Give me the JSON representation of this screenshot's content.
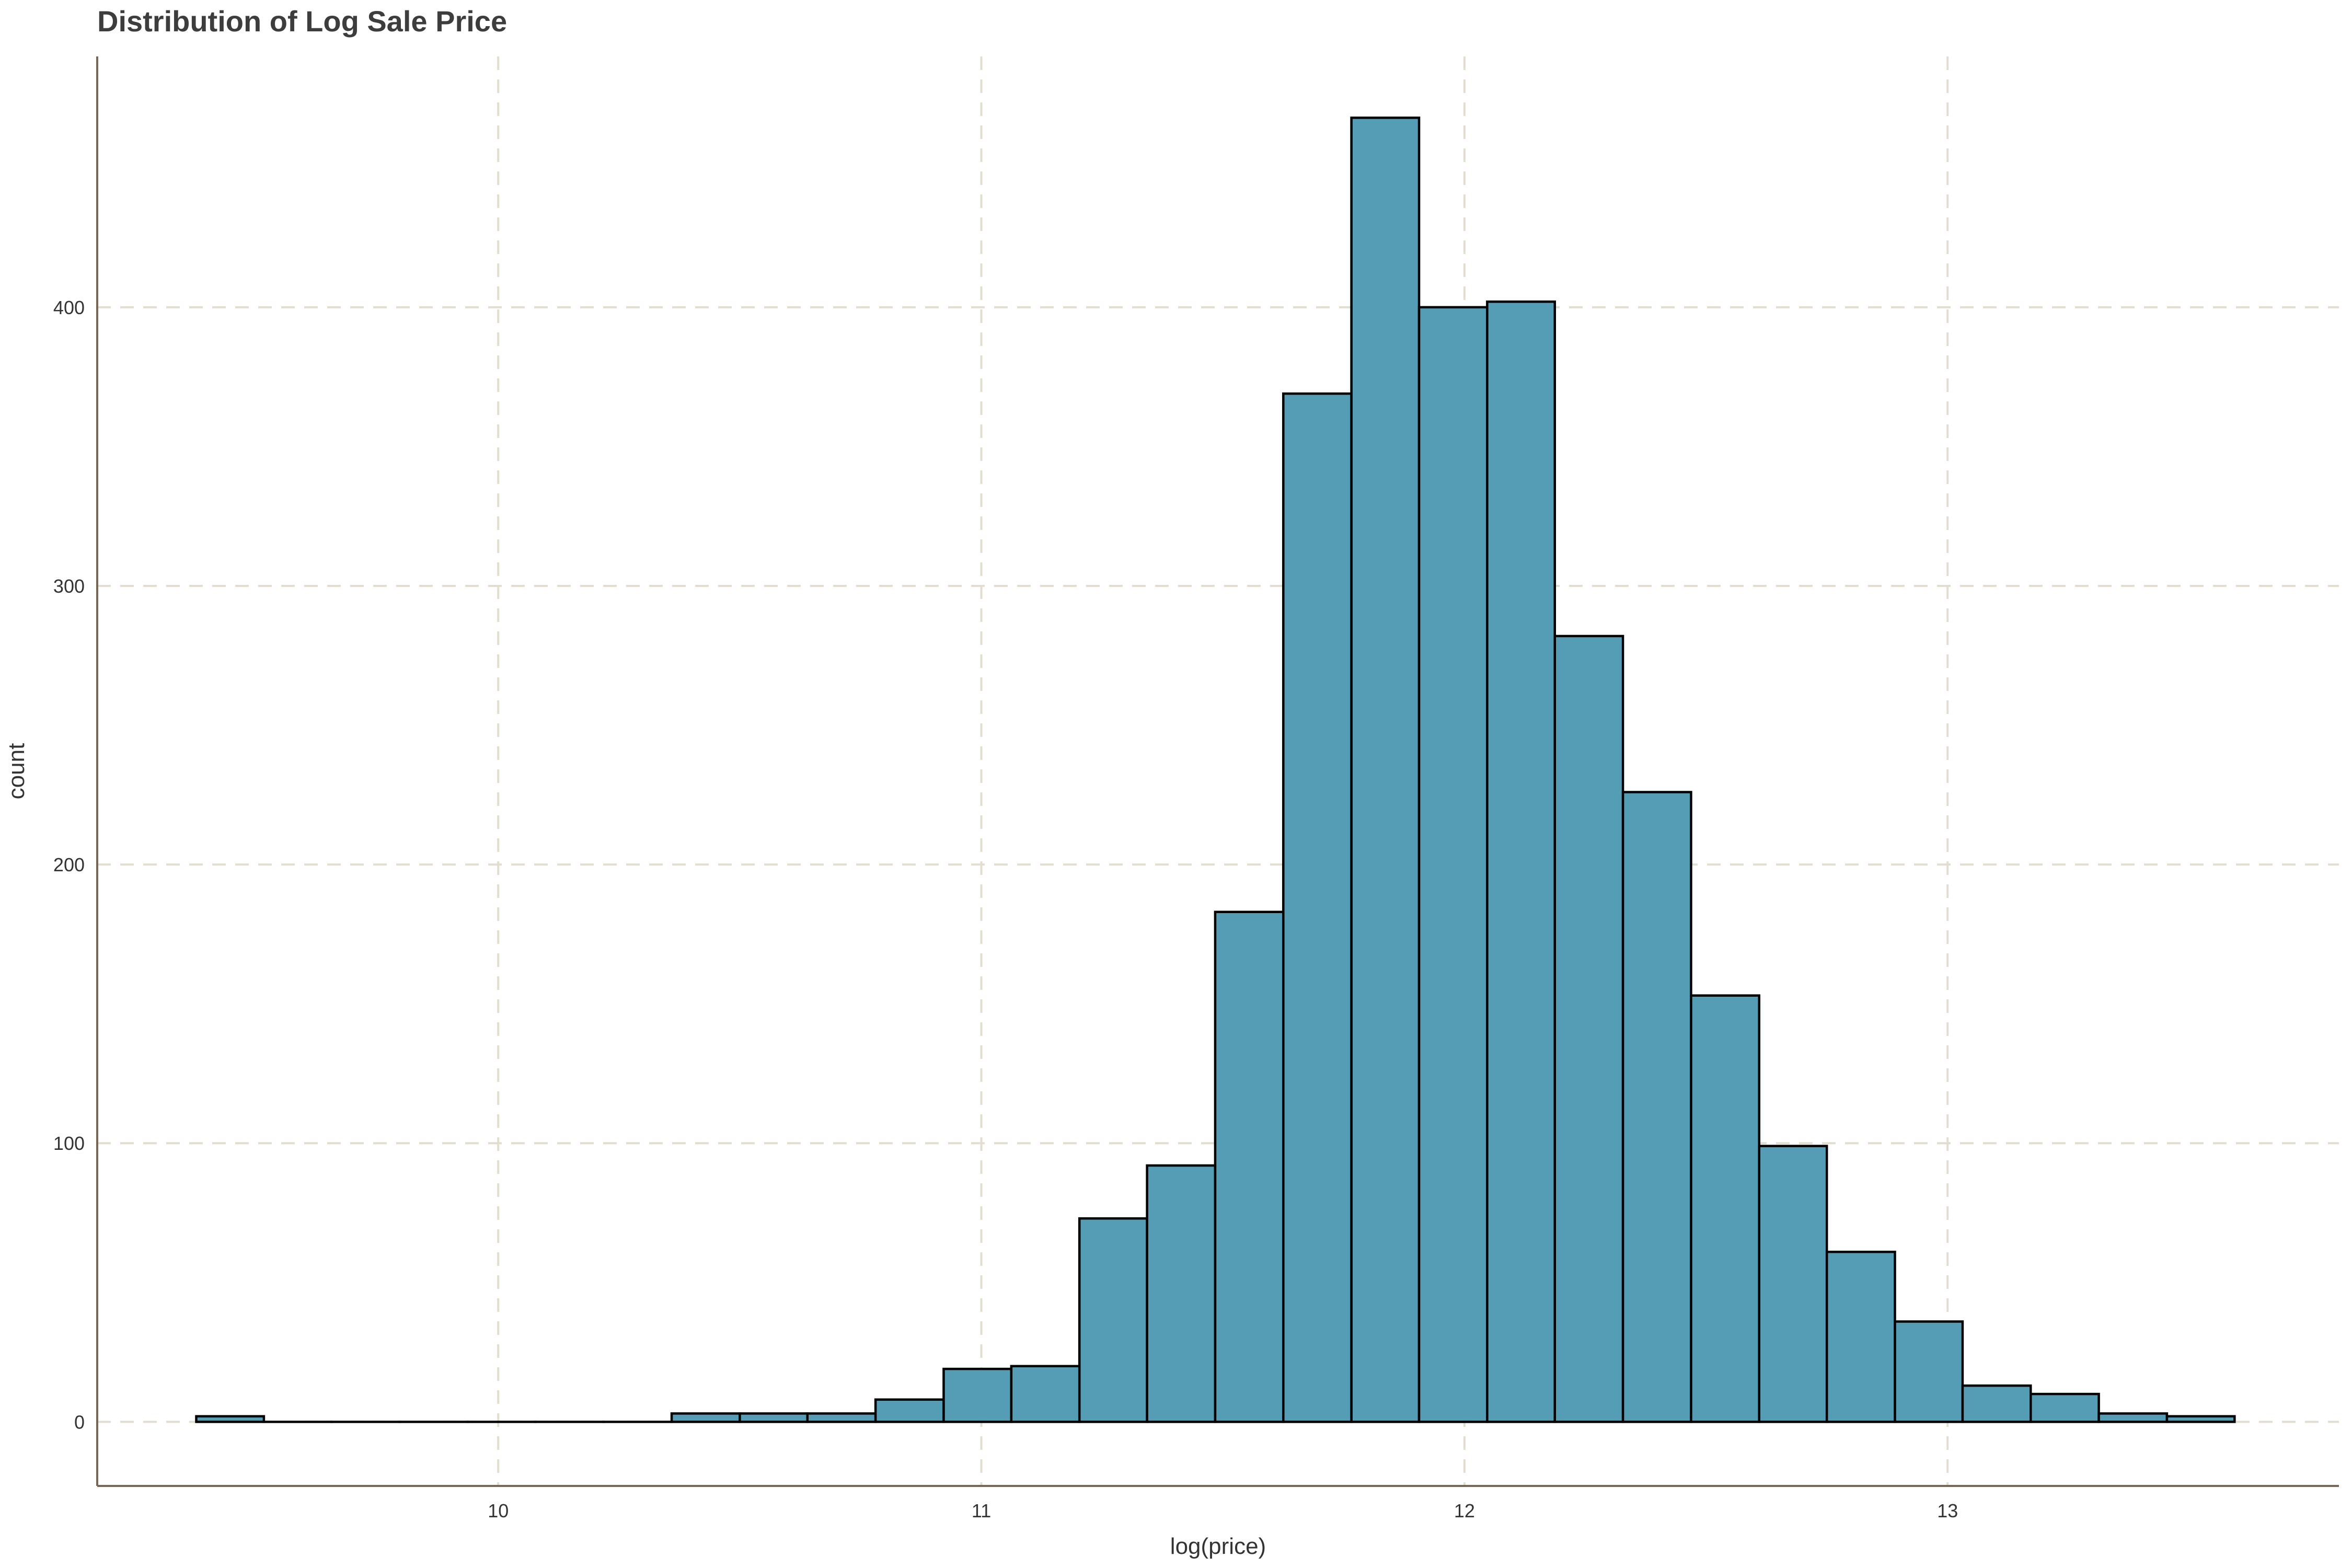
{
  "chart_data": {
    "type": "bar",
    "title": "Distribution of Log Sale Price",
    "xlabel": "log(price)",
    "ylabel": "count",
    "x_ticks": [
      "10",
      "11",
      "12",
      "13"
    ],
    "x_tick_values": [
      10,
      11,
      12,
      13
    ],
    "y_ticks": [
      "0",
      "100",
      "200",
      "300",
      "400"
    ],
    "y_tick_values": [
      0,
      100,
      200,
      300,
      400
    ],
    "xlim": [
      9.17,
      13.81
    ],
    "ylim": [
      -23,
      490
    ],
    "grid": true,
    "bins": [
      {
        "x0": 9.375,
        "x1": 9.515,
        "count": 2
      },
      {
        "x0": 9.515,
        "x1": 9.655,
        "count": 0
      },
      {
        "x0": 9.655,
        "x1": 9.796,
        "count": 0
      },
      {
        "x0": 9.796,
        "x1": 9.937,
        "count": 0
      },
      {
        "x0": 9.937,
        "x1": 10.077,
        "count": 0
      },
      {
        "x0": 10.077,
        "x1": 10.218,
        "count": 0
      },
      {
        "x0": 10.218,
        "x1": 10.359,
        "count": 0
      },
      {
        "x0": 10.359,
        "x1": 10.5,
        "count": 3
      },
      {
        "x0": 10.5,
        "x1": 10.64,
        "count": 3
      },
      {
        "x0": 10.64,
        "x1": 10.781,
        "count": 3
      },
      {
        "x0": 10.781,
        "x1": 10.922,
        "count": 8
      },
      {
        "x0": 10.922,
        "x1": 11.062,
        "count": 19
      },
      {
        "x0": 11.062,
        "x1": 11.203,
        "count": 20
      },
      {
        "x0": 11.203,
        "x1": 11.343,
        "count": 73
      },
      {
        "x0": 11.343,
        "x1": 11.484,
        "count": 92
      },
      {
        "x0": 11.484,
        "x1": 11.625,
        "count": 183
      },
      {
        "x0": 11.625,
        "x1": 11.766,
        "count": 369
      },
      {
        "x0": 11.766,
        "x1": 11.906,
        "count": 468
      },
      {
        "x0": 11.906,
        "x1": 12.047,
        "count": 400
      },
      {
        "x0": 12.047,
        "x1": 12.187,
        "count": 402
      },
      {
        "x0": 12.187,
        "x1": 12.328,
        "count": 282
      },
      {
        "x0": 12.328,
        "x1": 12.469,
        "count": 226
      },
      {
        "x0": 12.469,
        "x1": 12.61,
        "count": 153
      },
      {
        "x0": 12.61,
        "x1": 12.75,
        "count": 99
      },
      {
        "x0": 12.75,
        "x1": 12.891,
        "count": 61
      },
      {
        "x0": 12.891,
        "x1": 13.031,
        "count": 36
      },
      {
        "x0": 13.031,
        "x1": 13.172,
        "count": 13
      },
      {
        "x0": 13.172,
        "x1": 13.313,
        "count": 10
      },
      {
        "x0": 13.313,
        "x1": 13.454,
        "count": 3
      },
      {
        "x0": 13.454,
        "x1": 13.594,
        "count": 2
      }
    ]
  },
  "colors": {
    "bar_fill": "#559db5",
    "bar_stroke": "#000000",
    "grid": "#e3ddd0",
    "axis": "#7a6654",
    "text": "#333333"
  }
}
